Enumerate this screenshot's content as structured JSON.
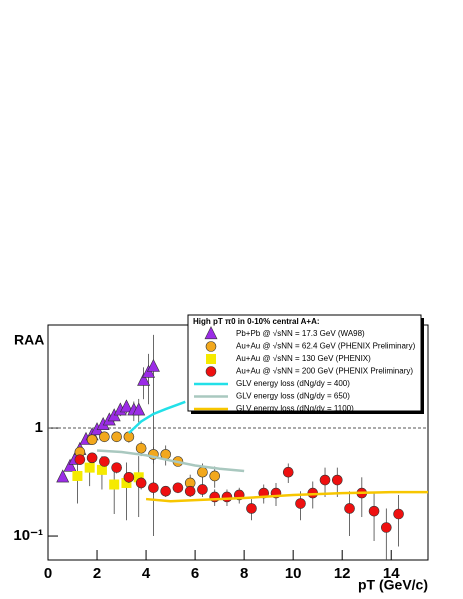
{
  "chart_data": {
    "type": "scatter",
    "legend_title": "High pT π0 in 0-10% central A+A:",
    "x_label": "pT (GeV/c)",
    "y_label": "RAA",
    "xlim": [
      0,
      15.5
    ],
    "ylim": [
      0.06,
      9
    ],
    "log_y": true,
    "xticks": [
      0,
      2,
      4,
      6,
      8,
      10,
      12,
      14
    ],
    "yticks": [
      {
        "value": 0.1,
        "label": "10⁻¹"
      },
      1
    ],
    "reference_line": 1,
    "series": [
      {
        "name": "Pb+Pb @ √sNN = 17.3 GeV (WA98)",
        "marker": "triangle",
        "color": "#9b2ce6",
        "x": [
          0.6,
          0.9,
          1.1,
          1.3,
          1.55,
          1.8,
          2.0,
          2.25,
          2.5,
          2.7,
          2.95,
          3.2,
          3.5,
          3.7,
          3.9,
          4.1,
          4.3
        ],
        "values": [
          0.35,
          0.44,
          0.51,
          0.63,
          0.78,
          0.86,
          0.96,
          1.07,
          1.18,
          1.29,
          1.46,
          1.56,
          1.46,
          1.46,
          2.75,
          3.26,
          3.7
        ],
        "errors": [
          0.03,
          0.04,
          0.05,
          0.06,
          0.07,
          0.08,
          0.09,
          0.1,
          0.12,
          0.14,
          0.17,
          0.2,
          0.3,
          0.4,
          0.9,
          1.6,
          3.6
        ]
      },
      {
        "name": "Au+Au @ √sNN = 62.4 GeV (PHENIX Preliminary)",
        "marker": "circle",
        "color": "#f2a81d",
        "x": [
          1.3,
          1.8,
          2.3,
          2.8,
          3.3,
          3.8,
          4.3,
          4.8,
          5.3,
          5.8,
          6.3,
          6.8
        ],
        "values": [
          0.6,
          0.78,
          0.83,
          0.83,
          0.83,
          0.65,
          0.57,
          0.57,
          0.49,
          0.31,
          0.39,
          0.36
        ],
        "errors": [
          0.06,
          0.07,
          0.08,
          0.08,
          0.1,
          0.1,
          0.1,
          0.12,
          0.05,
          0.06,
          0.08,
          0.08
        ]
      },
      {
        "name": "Au+Au @ √sNN = 130 GeV  (PHENIX)",
        "marker": "square",
        "color": "#f5ea00",
        "x": [
          1.2,
          1.7,
          2.2,
          2.7,
          3.2,
          3.7
        ],
        "values": [
          0.36,
          0.43,
          0.41,
          0.3,
          0.31,
          0.35
        ],
        "errors": [
          0.16,
          0.14,
          0.14,
          0.14,
          0.17,
          0.2
        ]
      },
      {
        "name": "Au+Au @ √sNN = 200 GeV (PHENIX Preliminary)",
        "marker": "circle",
        "color": "#ee1010",
        "x": [
          1.3,
          1.8,
          2.3,
          2.8,
          3.3,
          3.8,
          4.3,
          4.8,
          5.3,
          5.8,
          6.3,
          6.8,
          7.3,
          7.8,
          8.3,
          8.8,
          9.3,
          9.8,
          10.3,
          10.8,
          11.3,
          11.8,
          12.3,
          12.8,
          13.3,
          13.8,
          14.3
        ],
        "values": [
          0.51,
          0.53,
          0.49,
          0.43,
          0.35,
          0.31,
          0.28,
          0.26,
          0.28,
          0.26,
          0.27,
          0.23,
          0.23,
          0.24,
          0.18,
          0.25,
          0.25,
          0.39,
          0.2,
          0.25,
          0.33,
          0.33,
          0.18,
          0.25,
          0.17,
          0.12,
          0.16
        ],
        "errors": [
          0.05,
          0.05,
          0.05,
          0.05,
          0.04,
          0.04,
          0.04,
          0.03,
          0.03,
          0.03,
          0.04,
          0.04,
          0.04,
          0.04,
          0.04,
          0.05,
          0.06,
          0.08,
          0.06,
          0.07,
          0.1,
          0.1,
          0.08,
          0.1,
          0.08,
          0.06,
          0.08
        ]
      },
      {
        "name": "GLV energy loss (dNg/dy = 400)",
        "marker": "line",
        "color": "#22e0e8",
        "x": [
          3.3,
          3.8,
          4.3,
          4.8,
          5.3,
          5.6
        ],
        "values": [
          0.9,
          1.15,
          1.35,
          1.5,
          1.65,
          1.75
        ]
      },
      {
        "name": "GLV energy loss (dNg/dy = 650)",
        "marker": "line",
        "color": "#a9c8bf",
        "x": [
          2,
          3,
          4,
          5,
          6,
          7,
          8
        ],
        "values": [
          0.62,
          0.6,
          0.56,
          0.5,
          0.45,
          0.42,
          0.4
        ]
      },
      {
        "name": "GLV energy loss (dNg/dy = 1100)",
        "marker": "line",
        "color": "#f7c600",
        "x": [
          4,
          5,
          6,
          8,
          10,
          12,
          14,
          15.5
        ],
        "values": [
          0.22,
          0.21,
          0.215,
          0.225,
          0.24,
          0.25,
          0.255,
          0.255
        ]
      }
    ]
  }
}
